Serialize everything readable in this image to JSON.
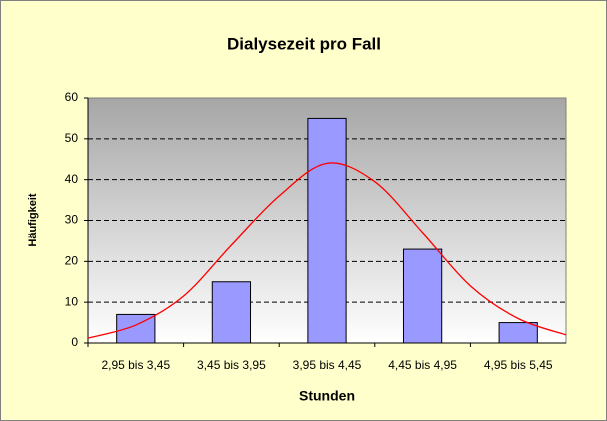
{
  "chart_data": {
    "type": "bar",
    "title": "Dialysezeit pro Fall",
    "x_label": "Stunden",
    "y_label": "Häufigkeit",
    "categories": [
      "2,95 bis 3,45",
      "3,45 bis 3,95",
      "3,95 bis 4,45",
      "4,45 bis 4,95",
      "4,95 bis 5,45"
    ],
    "series": [
      {
        "type": "bar",
        "color": "#9999ff",
        "values": [
          7,
          15,
          55,
          23,
          5
        ]
      },
      {
        "type": "line",
        "color": "#ff0000",
        "x": [
          -0.5,
          0,
          0.5,
          1,
          1.5,
          2,
          2.5,
          3,
          3.5,
          4,
          4.5
        ],
        "values": [
          1.2,
          4.4,
          11.5,
          24,
          36,
          44,
          39.5,
          27,
          14,
          6,
          2
        ]
      }
    ],
    "ylim": [
      0,
      60
    ],
    "yticks": [
      0,
      10,
      20,
      30,
      40,
      50,
      60
    ],
    "grid": true
  }
}
